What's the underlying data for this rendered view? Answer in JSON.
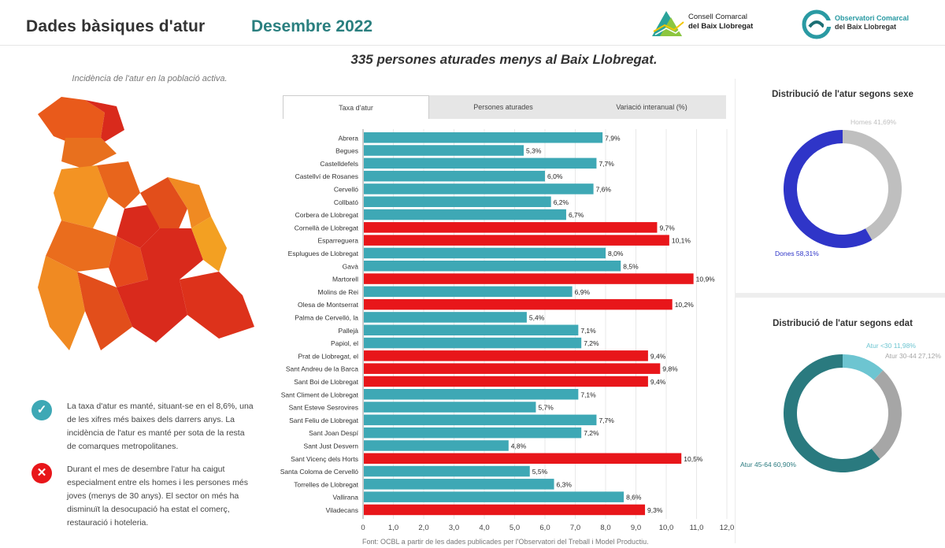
{
  "header": {
    "title": "Dades bàsiques d'atur",
    "date": "Desembre 2022",
    "logo1_line1": "Consell Comarcal",
    "logo1_line2": "del Baix Llobregat",
    "logo2_line1": "Observatori Comarcal",
    "logo2_line2": "del Baix Llobregat"
  },
  "headline": "335 persones aturades menys al Baix Llobregat.",
  "map_caption": "Incidència de l'atur en la població activa.",
  "notes": {
    "good": "La taxa d'atur es manté, situant-se en el 8,6%, una de les xifres més baixes dels darrers anys. La incidència de l'atur es manté per sota de la resta de comarques metropolitanes.",
    "bad": "Durant el mes de desembre l'atur ha caigut especialment entre els homes i les persones més joves (menys de 30 anys). El sector on més ha disminuït la desocupació ha estat el comerç, restauració i hoteleria."
  },
  "tabs": [
    "Taxa d'atur",
    "Persones aturades",
    "Variació interanual (%)"
  ],
  "source": "Font: OCBL a partir de les dades publicades per l'Observatori del Treball i Model Productiu.",
  "colors": {
    "teal": "#3ea8b5",
    "red": "#e8161a",
    "dones": "#2f35c8",
    "homes": "#bfbfbf",
    "age_young": "#6dc5d1",
    "age_mid": "#a6a6a6",
    "age_old": "#2a7a7f"
  },
  "chart_data": [
    {
      "type": "bar",
      "orientation": "horizontal",
      "categories": [
        "Abrera",
        "Begues",
        "Castelldefels",
        "Castellví de Rosanes",
        "Cervelló",
        "Collbató",
        "Corbera de Llobregat",
        "Cornellà de Llobregat",
        "Esparreguera",
        "Esplugues de Llobregat",
        "Gavà",
        "Martorell",
        "Molins de Rei",
        "Olesa de Montserrat",
        "Palma de Cervelló, la",
        "Pallejà",
        "Papiol, el",
        "Prat de Llobregat, el",
        "Sant Andreu de la Barca",
        "Sant Boi de Llobregat",
        "Sant Climent de Llobregat",
        "Sant Esteve Sesrovires",
        "Sant Feliu de Llobregat",
        "Sant Joan Despí",
        "Sant Just Desvern",
        "Sant Vicenç dels Horts",
        "Santa Coloma de Cervelló",
        "Torrelles de Llobregat",
        "Vallirana",
        "Viladecans"
      ],
      "values": [
        7.9,
        5.3,
        7.7,
        6.0,
        7.6,
        6.2,
        6.7,
        9.7,
        10.1,
        8.0,
        8.5,
        10.9,
        6.9,
        10.2,
        5.4,
        7.1,
        7.2,
        9.4,
        9.8,
        9.4,
        7.1,
        5.7,
        7.7,
        7.2,
        4.8,
        10.5,
        5.5,
        6.3,
        8.6,
        9.3
      ],
      "labels": [
        "7,9%",
        "5,3%",
        "7,7%",
        "6,0%",
        "7,6%",
        "6,2%",
        "6,7%",
        "9,7%",
        "10,1%",
        "8,0%",
        "8,5%",
        "10,9%",
        "6,9%",
        "10,2%",
        "5,4%",
        "7,1%",
        "7,2%",
        "9,4%",
        "9,8%",
        "9,4%",
        "7,1%",
        "5,7%",
        "7,7%",
        "7,2%",
        "4,8%",
        "10,5%",
        "5,5%",
        "6,3%",
        "8,6%",
        "9,3%"
      ],
      "highlight": [
        false,
        false,
        false,
        false,
        false,
        false,
        false,
        true,
        true,
        false,
        false,
        true,
        false,
        true,
        false,
        false,
        false,
        true,
        true,
        true,
        false,
        false,
        false,
        false,
        false,
        true,
        false,
        false,
        false,
        true
      ],
      "xticks": [
        "0",
        "1,0",
        "2,0",
        "3,0",
        "4,0",
        "5,0",
        "6,0",
        "7,0",
        "8,0",
        "9,0",
        "10,0",
        "11,0",
        "12,0"
      ],
      "xlim": [
        0,
        12
      ],
      "grid": true
    },
    {
      "type": "pie",
      "title": "Distribució de l'atur segons sexe",
      "series": [
        {
          "name": "Homes",
          "value": 41.69,
          "label": "Homes 41,69%"
        },
        {
          "name": "Dones",
          "value": 58.31,
          "label": "Dones 58,31%"
        }
      ]
    },
    {
      "type": "pie",
      "title": "Distribució de l'atur segons edat",
      "series": [
        {
          "name": "Atur <30",
          "value": 11.98,
          "label": "Atur <30 11,98%"
        },
        {
          "name": "Atur 30-44",
          "value": 27.12,
          "label": "Atur 30-44 27,12%"
        },
        {
          "name": "Atur 45-64",
          "value": 60.9,
          "label": "Atur 45-64 60,90%"
        }
      ]
    }
  ]
}
